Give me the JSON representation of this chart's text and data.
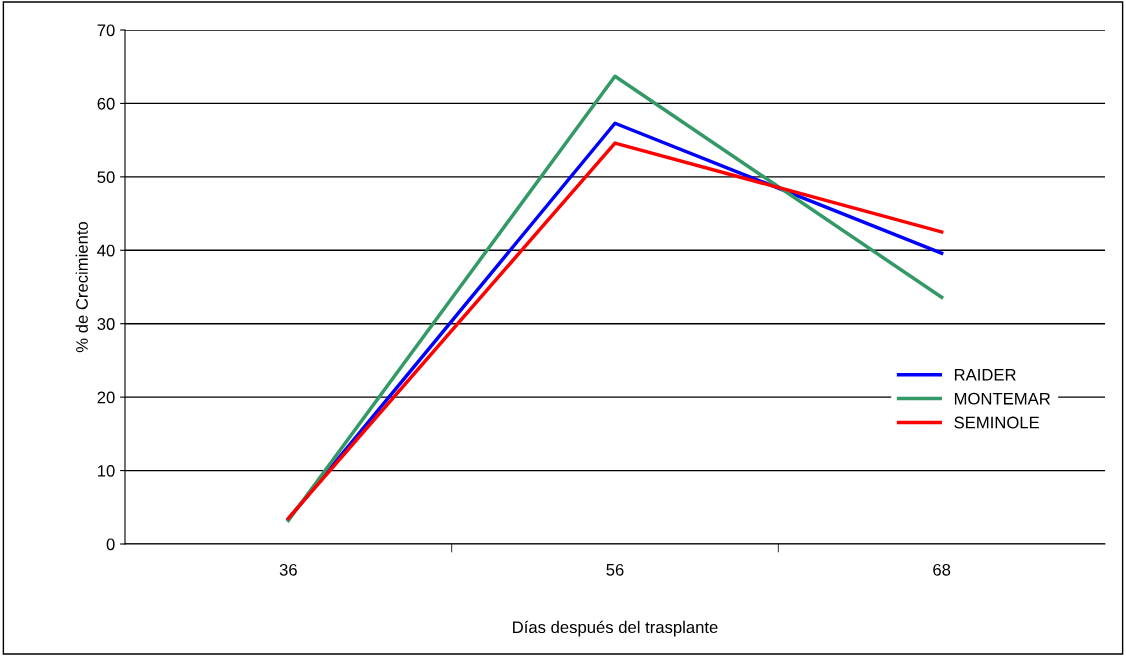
{
  "chart_data": {
    "type": "line",
    "xlabel": "Días después del trasplante",
    "ylabel": "% de Crecimiento",
    "categories": [
      "36",
      "56",
      "68"
    ],
    "series": [
      {
        "name": "RAIDER",
        "color": "#0000ff",
        "values": [
          3.4,
          57.3,
          39.6
        ]
      },
      {
        "name": "MONTEMAR",
        "color": "#339966",
        "values": [
          3.2,
          63.7,
          33.6
        ]
      },
      {
        "name": "SEMINOLE",
        "color": "#ff0000",
        "values": [
          3.5,
          54.6,
          42.5
        ]
      }
    ],
    "ylim": [
      0,
      70
    ],
    "yticks": [
      0,
      10,
      20,
      30,
      40,
      50,
      60,
      70
    ],
    "grid": "y",
    "legend": "right",
    "marker": "none",
    "line_style": "solid"
  }
}
